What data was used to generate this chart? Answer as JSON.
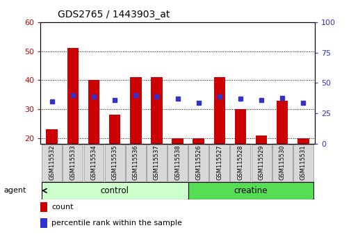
{
  "title": "GDS2765 / 1443903_at",
  "categories": [
    "GSM115532",
    "GSM115533",
    "GSM115534",
    "GSM115535",
    "GSM115536",
    "GSM115537",
    "GSM115538",
    "GSM115526",
    "GSM115527",
    "GSM115528",
    "GSM115529",
    "GSM115530",
    "GSM115531"
  ],
  "bar_values": [
    23,
    51,
    40,
    28,
    41,
    41,
    20,
    20,
    41,
    30,
    21,
    33,
    20
  ],
  "percentile_values": [
    35,
    40,
    39,
    36,
    40,
    39,
    37,
    34,
    39,
    37,
    36,
    38,
    34
  ],
  "bar_color": "#cc0000",
  "percentile_color": "#3333cc",
  "ylim_left": [
    18,
    60
  ],
  "ylim_right": [
    0,
    100
  ],
  "yticks_left": [
    20,
    30,
    40,
    50,
    60
  ],
  "yticks_right": [
    0,
    25,
    50,
    75,
    100
  ],
  "group1_label": "control",
  "group2_label": "creatine",
  "group1_indices": [
    0,
    1,
    2,
    3,
    4,
    5,
    6
  ],
  "group2_indices": [
    7,
    8,
    9,
    10,
    11,
    12
  ],
  "group1_color": "#ccffcc",
  "group2_color": "#55dd55",
  "agent_label": "agent",
  "legend_count": "count",
  "legend_percentile": "percentile rank within the sample",
  "tick_color_left": "#cc0000",
  "tick_color_right": "#3333cc",
  "gap_between_groups": true
}
